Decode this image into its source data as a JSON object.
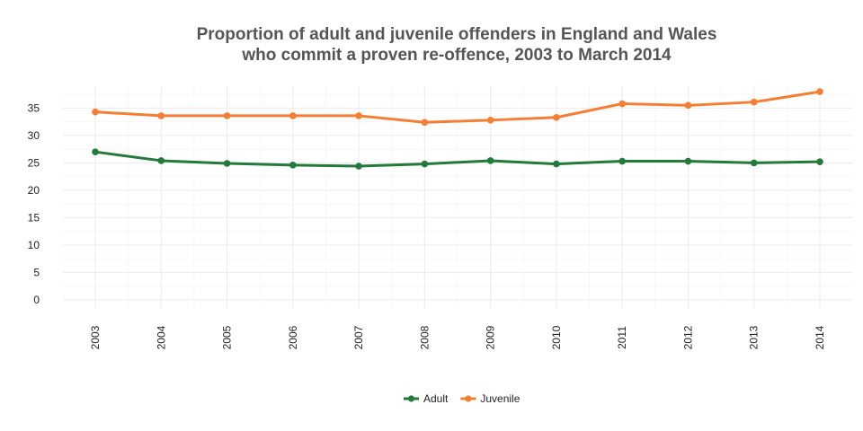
{
  "chart_data": {
    "type": "line",
    "title_lines": [
      "Proportion of adult and juvenile offenders in England and Wales",
      "who commit a proven re-offence, 2003 to March 2014"
    ],
    "xlabel": "",
    "ylabel": "",
    "categories": [
      "2003",
      "2004",
      "2005",
      "2006",
      "2007",
      "2008",
      "2009",
      "2010",
      "2011",
      "2012",
      "2013",
      "2014"
    ],
    "y_ticks": [
      0,
      5,
      10,
      15,
      20,
      25,
      30,
      35
    ],
    "ylim": [
      -1.5,
      39
    ],
    "grid": true,
    "legend_position": "bottom",
    "series": [
      {
        "name": "Adult",
        "color": "#237a3b",
        "values": [
          27.0,
          25.4,
          24.9,
          24.6,
          24.4,
          24.8,
          25.4,
          24.8,
          25.3,
          25.3,
          25.0,
          25.2
        ]
      },
      {
        "name": "Juvenile",
        "color": "#f47f34",
        "values": [
          34.3,
          33.6,
          33.6,
          33.6,
          33.6,
          32.4,
          32.8,
          33.3,
          35.8,
          35.5,
          36.1,
          38.0
        ]
      }
    ]
  }
}
